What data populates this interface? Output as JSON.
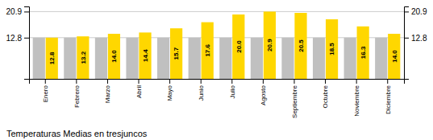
{
  "chart_data": {
    "type": "bar",
    "title": "Temperaturas Medias en tresjuncos",
    "categories": [
      "Enero",
      "Febrero",
      "Marzo",
      "Abril",
      "Mayo",
      "Junio",
      "Julio",
      "Agosto",
      "Septiembre",
      "Octubre",
      "Noviembre",
      "Diciembre"
    ],
    "series": [
      {
        "color": "#C0C0C0",
        "values": [
          12.8,
          12.8,
          12.8,
          12.8,
          12.8,
          12.8,
          12.8,
          12.8,
          12.8,
          12.8,
          12.8,
          12.8
        ]
      },
      {
        "color": "#FFD700",
        "values": [
          12.8,
          13.2,
          14.0,
          14.4,
          15.7,
          17.6,
          20.0,
          20.9,
          20.5,
          18.5,
          16.3,
          14.0
        ],
        "data_labels": true,
        "value_labels": [
          "12.8",
          "13.2",
          "14.0",
          "14.4",
          "15.7",
          "17.6",
          "20.0",
          "20.9",
          "20.5",
          "18.5",
          "16.3",
          "14.0"
        ]
      }
    ],
    "ylim": [
      0,
      22.5
    ],
    "yticks": [
      12.8,
      20.9
    ],
    "y2lim": [
      0,
      22.5
    ],
    "y2ticks": [
      12.8,
      20.9
    ],
    "grid": true
  }
}
